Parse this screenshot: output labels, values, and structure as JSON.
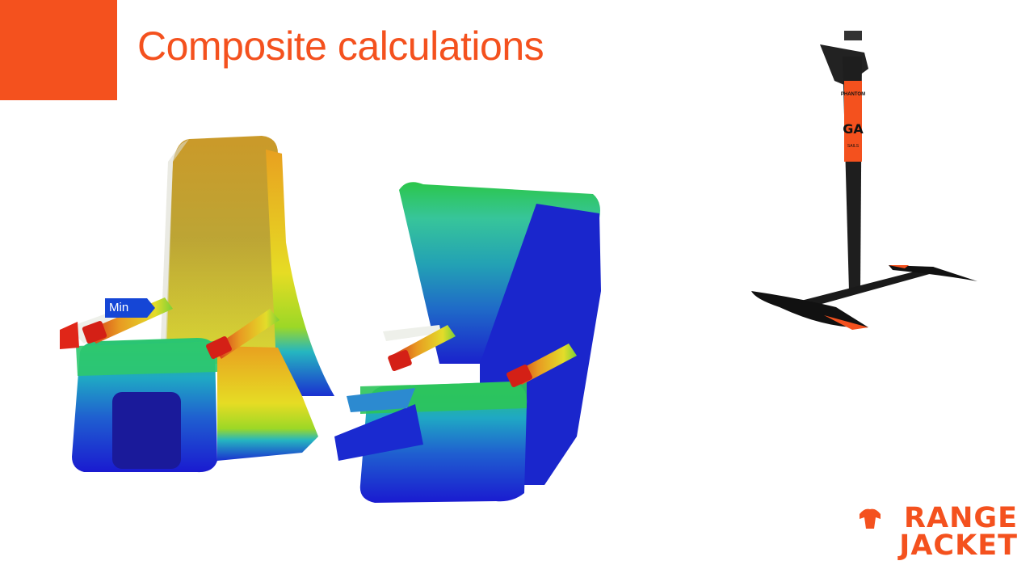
{
  "slide": {
    "title": "Composite calculations",
    "accent_color": "#f4511e"
  },
  "fea_image": {
    "min_label": "Min",
    "colormap": [
      "#1a1ad6",
      "#1f6fd0",
      "#1fb0c8",
      "#2fd08a",
      "#8fdc2a",
      "#e8e020",
      "#e0a81a",
      "#d43a1a"
    ]
  },
  "foil_image": {
    "sticker_brand": "GA",
    "sticker_sub": "SAILS",
    "sticker_text": "PHANTOM"
  },
  "logo": {
    "line1": "RANGE",
    "line2": "JACKET"
  }
}
